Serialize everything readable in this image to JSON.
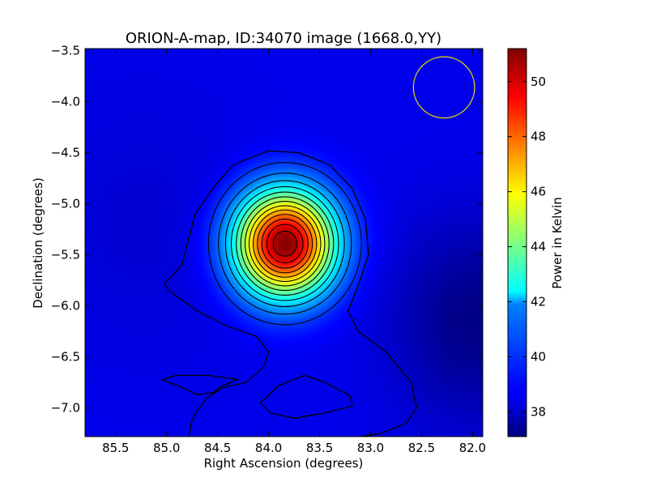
{
  "chart_data": {
    "type": "heatmap",
    "title": "ORION-A-map, ID:34070 image (1668.0,YY)",
    "xlabel": "Right Ascension (degrees)",
    "ylabel": "Declination (degrees)",
    "xlim": [
      85.8,
      81.9
    ],
    "ylim": [
      -7.28,
      -3.48
    ],
    "xticks": [
      {
        "value": 85.5,
        "label": "85.5"
      },
      {
        "value": 85.0,
        "label": "85.0"
      },
      {
        "value": 84.5,
        "label": "84.5"
      },
      {
        "value": 84.0,
        "label": "84.0"
      },
      {
        "value": 83.5,
        "label": "83.5"
      },
      {
        "value": 83.0,
        "label": "83.0"
      },
      {
        "value": 82.5,
        "label": "82.5"
      },
      {
        "value": 82.0,
        "label": "82.0"
      }
    ],
    "yticks": [
      {
        "value": -3.5,
        "label": "−3.5"
      },
      {
        "value": -4.0,
        "label": "−4.0"
      },
      {
        "value": -4.5,
        "label": "−4.5"
      },
      {
        "value": -5.0,
        "label": "−5.0"
      },
      {
        "value": -5.5,
        "label": "−5.5"
      },
      {
        "value": -6.0,
        "label": "−6.0"
      },
      {
        "value": -6.5,
        "label": "−6.5"
      },
      {
        "value": -7.0,
        "label": "−7.0"
      }
    ],
    "colorbar": {
      "label": "Power in Kelvin",
      "range": [
        37.1,
        51.2
      ],
      "colormap": "jet",
      "ticks": [
        {
          "value": 38,
          "label": "38"
        },
        {
          "value": 40,
          "label": "40"
        },
        {
          "value": 42,
          "label": "42"
        },
        {
          "value": 44,
          "label": "44"
        },
        {
          "value": 46,
          "label": "46"
        },
        {
          "value": 48,
          "label": "48"
        },
        {
          "value": 50,
          "label": "50"
        }
      ]
    },
    "background_level": 38.6,
    "peak": {
      "ra": 83.84,
      "dec": -5.39,
      "value": 51.2,
      "sigma_ra": 0.34,
      "sigma_dec": 0.36
    },
    "cold_region": {
      "ra": 82.0,
      "dec": -6.15,
      "value": 37.2
    },
    "contour_levels": [
      39.7,
      40.6,
      41.5,
      42.4,
      43.3,
      44.2,
      45.1,
      46.0,
      46.9,
      47.8,
      48.7,
      49.6,
      50.5
    ],
    "outer_contours": [
      [
        [
          84.78,
          -7.28
        ],
        [
          84.76,
          -7.15
        ],
        [
          84.72,
          -7.05
        ],
        [
          84.6,
          -6.9
        ],
        [
          84.45,
          -6.8
        ],
        [
          84.22,
          -6.75
        ],
        [
          84.05,
          -6.6
        ],
        [
          84.0,
          -6.45
        ],
        [
          84.12,
          -6.3
        ],
        [
          84.4,
          -6.2
        ],
        [
          84.7,
          -6.05
        ],
        [
          84.98,
          -5.85
        ],
        [
          85.02,
          -5.78
        ],
        [
          84.85,
          -5.6
        ],
        [
          84.8,
          -5.4
        ],
        [
          84.72,
          -5.1
        ],
        [
          84.55,
          -4.85
        ],
        [
          84.35,
          -4.62
        ],
        [
          84.0,
          -4.48
        ],
        [
          83.7,
          -4.5
        ],
        [
          83.4,
          -4.62
        ],
        [
          83.18,
          -4.85
        ],
        [
          83.05,
          -5.15
        ],
        [
          83.02,
          -5.5
        ],
        [
          83.12,
          -5.8
        ],
        [
          83.22,
          -6.05
        ],
        [
          83.12,
          -6.25
        ],
        [
          82.85,
          -6.45
        ],
        [
          82.6,
          -6.75
        ],
        [
          82.55,
          -7.0
        ],
        [
          82.65,
          -7.15
        ],
        [
          82.9,
          -7.25
        ],
        [
          83.1,
          -7.28
        ]
      ],
      [
        [
          85.05,
          -6.72
        ],
        [
          84.85,
          -6.8
        ],
        [
          84.7,
          -6.87
        ],
        [
          84.55,
          -6.85
        ],
        [
          84.45,
          -6.78
        ],
        [
          84.3,
          -6.72
        ],
        [
          84.6,
          -6.68
        ],
        [
          84.9,
          -6.68
        ],
        [
          85.05,
          -6.72
        ]
      ],
      [
        [
          84.08,
          -6.95
        ],
        [
          83.9,
          -6.78
        ],
        [
          83.65,
          -6.68
        ],
        [
          83.45,
          -6.75
        ],
        [
          83.2,
          -6.88
        ],
        [
          83.18,
          -6.98
        ],
        [
          83.45,
          -7.05
        ],
        [
          83.75,
          -7.1
        ],
        [
          83.98,
          -7.05
        ],
        [
          84.08,
          -6.95
        ]
      ]
    ],
    "beam_circle": {
      "ra": 82.28,
      "dec": -3.86,
      "radius_deg": 0.3,
      "color": "#e8e000"
    },
    "contour_color": "#000000"
  }
}
